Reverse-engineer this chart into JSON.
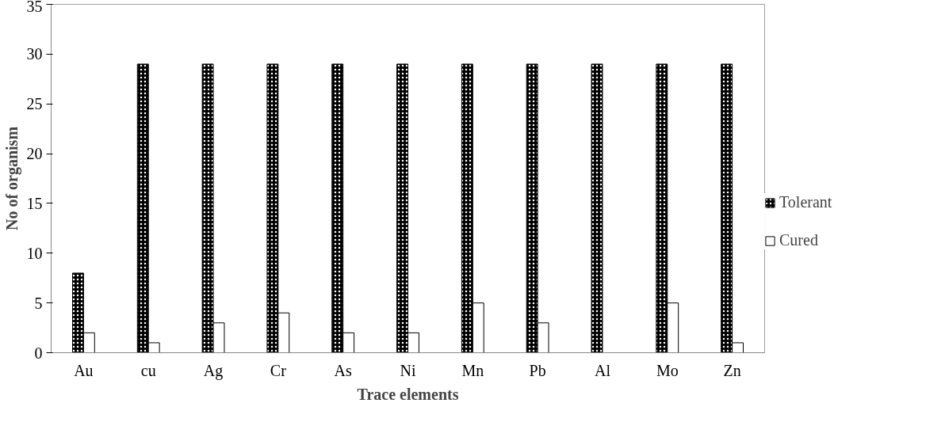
{
  "chart_data": {
    "type": "bar",
    "xlabel": "Trace elements",
    "ylabel": "No of organism",
    "categories": [
      "Au",
      "cu",
      "Ag",
      "Cr",
      "As",
      "Ni",
      "Mn",
      "Pb",
      "Al",
      "Mo",
      "Zn"
    ],
    "series": [
      {
        "name": "Tolerant",
        "color": "#000000",
        "values": [
          8,
          29,
          29,
          29,
          29,
          29,
          29,
          29,
          29,
          29,
          29
        ]
      },
      {
        "name": "Cured",
        "color": "#ffffff",
        "values": [
          2,
          1,
          3,
          4,
          2,
          2,
          5,
          3,
          null,
          5,
          1
        ]
      }
    ],
    "ylim": [
      0,
      35
    ],
    "yticks": [
      0,
      5,
      10,
      15,
      20,
      25,
      30,
      35
    ],
    "grid": false,
    "legend": "right"
  }
}
